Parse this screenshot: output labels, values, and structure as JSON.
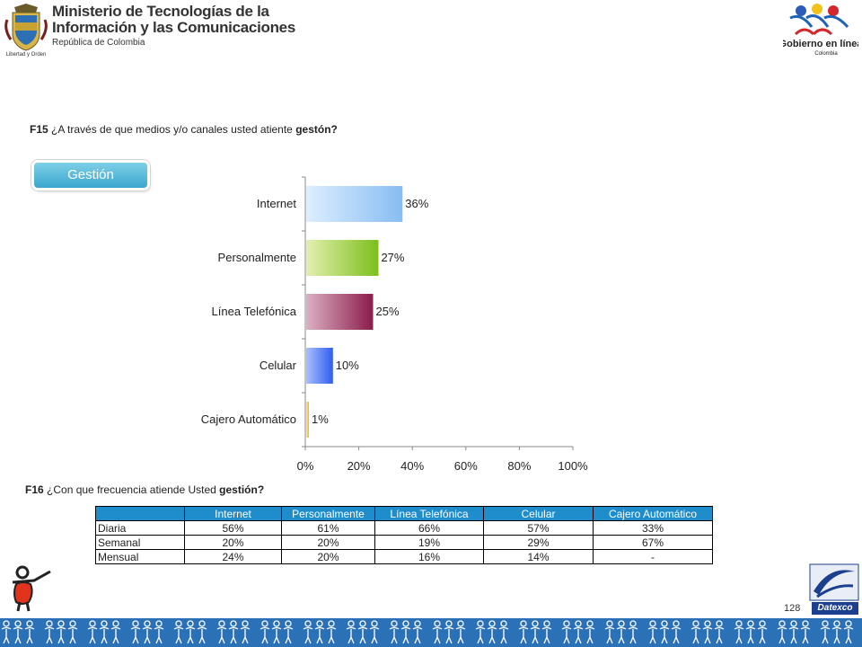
{
  "header": {
    "ministry_line1": "Ministerio de Tecnologías de la",
    "ministry_line2": "Información y las Comunicaciones",
    "ministry_line3": "República de Colombia",
    "coat_caption": "Libertad y Orden",
    "gov_logo_title": "Gobierno en línea",
    "gov_logo_sub": "Colombia"
  },
  "q15": {
    "code": "F15",
    "text": "¿A través de que medios y/o canales usted atiente ",
    "bold": "gestón?"
  },
  "badge": {
    "label": "Gestión",
    "color": "#3aa6cf"
  },
  "chart_data": {
    "type": "bar",
    "orientation": "horizontal",
    "categories": [
      "Internet",
      "Personalmente",
      "Línea Telefónica",
      "Celular",
      "Cajero Automático"
    ],
    "values": [
      36,
      27,
      25,
      10,
      1
    ],
    "data_labels": [
      "36%",
      "27%",
      "25%",
      "10%",
      "1%"
    ],
    "xlim": [
      0,
      100
    ],
    "x_ticks": [
      "0%",
      "20%",
      "40%",
      "60%",
      "80%",
      "100%"
    ],
    "grid": false,
    "bar_colors": [
      [
        "#ddeeff",
        "#88bdf2"
      ],
      [
        "#e3f0b0",
        "#7cbf1c"
      ],
      [
        "#dcb0c4",
        "#8a1c4a"
      ],
      [
        "#aac0ff",
        "#2f5df0"
      ],
      [
        "#ffe7a0",
        "#f0b428"
      ]
    ]
  },
  "q16": {
    "code": "F16",
    "text": "¿Con que frecuencia atiende Usted ",
    "bold": "gestión?"
  },
  "table": {
    "headers": [
      "",
      "Internet",
      "Personalmente",
      "Línea Telefónica",
      "Celular",
      "Cajero Automático"
    ],
    "rows": [
      [
        "Diaria",
        "56%",
        "61%",
        "66%",
        "57%",
        "33%"
      ],
      [
        "Semanal",
        "20%",
        "20%",
        "19%",
        "29%",
        "67%"
      ],
      [
        "Mensual",
        "24%",
        "20%",
        "16%",
        "14%",
        "-"
      ]
    ]
  },
  "footer": {
    "page_number": "128",
    "datexco_label": "Datexco"
  }
}
